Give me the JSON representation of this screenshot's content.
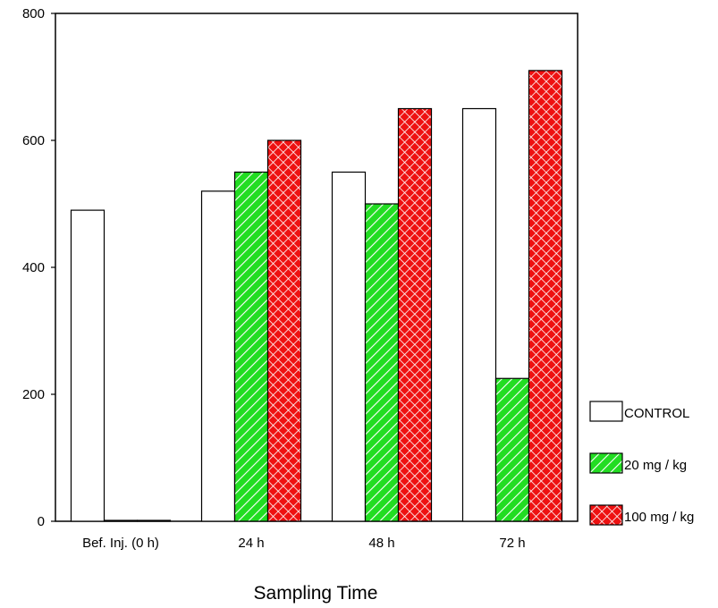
{
  "chart_data": {
    "type": "bar",
    "title": "",
    "xlabel": "Sampling Time",
    "ylabel": "",
    "categories": [
      "Bef. Inj. (0 h)",
      "24 h",
      "48 h",
      "72 h"
    ],
    "series": [
      {
        "name": "CONTROL",
        "values": [
          490,
          520,
          550,
          650
        ],
        "color": "#ffffff",
        "pattern": "none"
      },
      {
        "name": "20 mg / kg",
        "values": [
          0,
          550,
          500,
          225
        ],
        "color": "#22dd22",
        "pattern": "diagonal-hatch"
      },
      {
        "name": "100 mg / kg",
        "values": [
          0,
          600,
          650,
          710
        ],
        "color": "#ee1111",
        "pattern": "crosshatch"
      }
    ],
    "ylim": [
      0,
      800
    ],
    "yticks": [
      0,
      200,
      400,
      600,
      800
    ],
    "grid": false,
    "legend_position": "right"
  }
}
